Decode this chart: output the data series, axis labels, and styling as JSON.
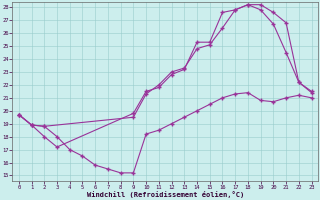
{
  "bg_color": "#cceeed",
  "line_color": "#993399",
  "xlabel": "Windchill (Refroidissement éolien,°C)",
  "xlim": [
    -0.5,
    23.5
  ],
  "ylim": [
    14.6,
    28.4
  ],
  "yticks": [
    15,
    16,
    17,
    18,
    19,
    20,
    21,
    22,
    23,
    24,
    25,
    26,
    27,
    28
  ],
  "xticks": [
    0,
    1,
    2,
    3,
    4,
    5,
    6,
    7,
    8,
    9,
    10,
    11,
    12,
    13,
    14,
    15,
    16,
    17,
    18,
    19,
    20,
    21,
    22,
    23
  ],
  "curve1_x": [
    0,
    1,
    2,
    3,
    4,
    5,
    6,
    7,
    8,
    9,
    10,
    11,
    12,
    13,
    14,
    15,
    16,
    17,
    18,
    19,
    20,
    21,
    22,
    23
  ],
  "curve1_y": [
    19.7,
    18.9,
    18.8,
    18.0,
    17.0,
    16.5,
    15.8,
    15.5,
    15.2,
    15.2,
    18.2,
    18.5,
    19.0,
    19.5,
    20.0,
    20.5,
    21.0,
    21.3,
    21.4,
    20.8,
    20.7,
    21.0,
    21.2,
    21.0
  ],
  "curve2_x": [
    0,
    1,
    2,
    9,
    10,
    11,
    12,
    13,
    14,
    15,
    16,
    17,
    18,
    19,
    20,
    21,
    22,
    23
  ],
  "curve2_y": [
    19.7,
    18.9,
    18.8,
    19.5,
    21.3,
    22.0,
    23.0,
    23.3,
    24.8,
    25.1,
    26.4,
    27.8,
    28.2,
    28.2,
    27.6,
    26.8,
    22.2,
    21.5
  ],
  "curve3_x": [
    0,
    1,
    2,
    3,
    9,
    10,
    11,
    12,
    13,
    14,
    15,
    16,
    17,
    18,
    19,
    20,
    21,
    22,
    23
  ],
  "curve3_y": [
    19.7,
    18.9,
    18.0,
    17.2,
    19.8,
    21.5,
    21.8,
    22.8,
    23.2,
    25.3,
    25.3,
    27.6,
    27.8,
    28.2,
    27.8,
    26.7,
    24.5,
    22.2,
    21.4
  ]
}
